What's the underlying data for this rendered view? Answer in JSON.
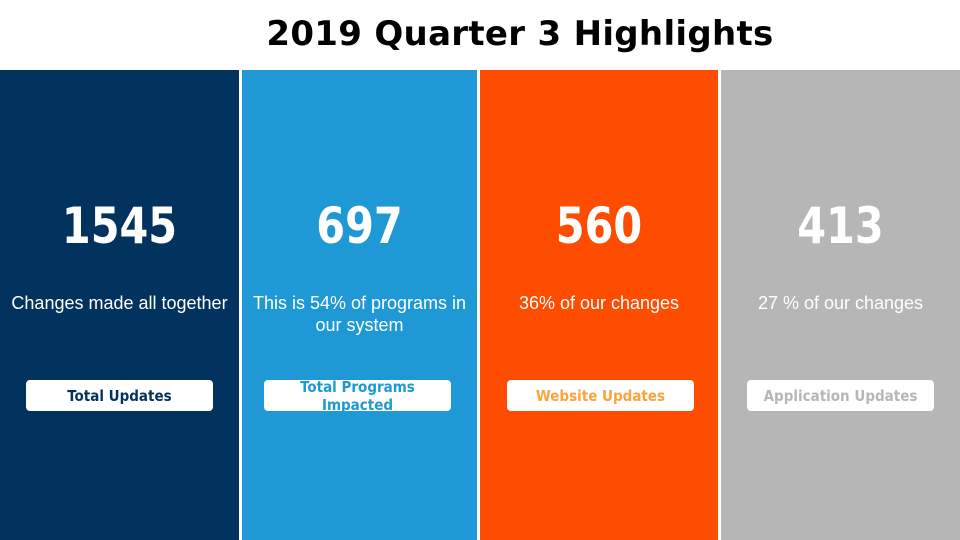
{
  "title": "2019 Quarter 3 Highlights",
  "colors": {
    "panel_1": "#02335f",
    "panel_2": "#1e99d5",
    "panel_3": "#fe4c00",
    "panel_4": "#b6b6b6",
    "pill_text_1": "#02335f",
    "pill_text_2": "#1e99d5",
    "pill_text_3": "#fba33c",
    "pill_text_4": "#b6b6b6"
  },
  "panels": [
    {
      "value": "1545",
      "description": "Changes made all together",
      "label": "Total Updates"
    },
    {
      "value": "697",
      "description": "This is 54% of programs in our system",
      "label": "Total Programs Impacted"
    },
    {
      "value": "560",
      "description": "36% of our changes",
      "label": "Website Updates"
    },
    {
      "value": "413",
      "description": "27 % of our changes",
      "label": "Application Updates"
    }
  ]
}
